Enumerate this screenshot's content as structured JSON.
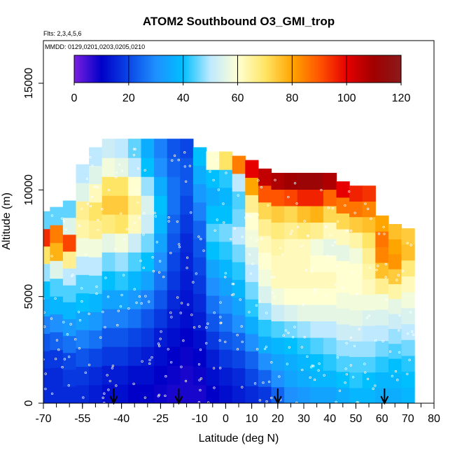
{
  "chart_data": {
    "type": "heatmap",
    "title": "ATOM2 Southbound O3_GMI_trop",
    "flights_label": "Flts: 2,3,4,5,6",
    "dates_label": "MMDD: 0129,0201,0203,0205,0210",
    "xlabel": "Latitude (deg N)",
    "ylabel": "Altitude (m)",
    "xlim": [
      -70,
      80
    ],
    "ylim": [
      0,
      17000
    ],
    "x_ticks": [
      -70,
      -55,
      -40,
      -25,
      -10,
      0,
      10,
      20,
      30,
      40,
      50,
      60,
      70,
      80
    ],
    "y_ticks": [
      0,
      5000,
      10000,
      15000
    ],
    "colorbar": {
      "ticks": [
        0,
        20,
        40,
        60,
        80,
        100,
        120
      ],
      "range": [
        0,
        120
      ],
      "colors": [
        "#7B1FE0",
        "#0000C8",
        "#0A46E6",
        "#1E90FF",
        "#00BFFF",
        "#BFE9FF",
        "#FFFFD2",
        "#FFE566",
        "#FFA500",
        "#FF5500",
        "#E60000",
        "#A00000",
        "#8B1A1A"
      ]
    },
    "flight_arrows_lat": [
      -43,
      -18,
      20,
      61
    ],
    "columns": [
      {
        "lat": -70,
        "top": 9000,
        "values": [
          16,
          16,
          18,
          22,
          28,
          36,
          40,
          48,
          70,
          95,
          45
        ]
      },
      {
        "lat": -65,
        "top": 9200,
        "values": [
          16,
          16,
          18,
          24,
          30,
          38,
          44,
          55,
          78,
          85,
          45
        ]
      },
      {
        "lat": -60,
        "top": 9500,
        "values": [
          16,
          18,
          20,
          26,
          32,
          38,
          44,
          50,
          66,
          92,
          55,
          45
        ]
      },
      {
        "lat": -55,
        "top": 11200,
        "values": [
          16,
          18,
          22,
          28,
          34,
          40,
          44,
          50,
          58,
          64,
          66,
          55,
          50
        ]
      },
      {
        "lat": -50,
        "top": 12000,
        "values": [
          14,
          16,
          20,
          26,
          32,
          38,
          44,
          50,
          58,
          66,
          70,
          62,
          55,
          50
        ]
      },
      {
        "lat": -45,
        "top": 12400,
        "values": [
          12,
          14,
          18,
          22,
          28,
          34,
          40,
          46,
          56,
          68,
          74,
          70,
          58,
          52
        ]
      },
      {
        "lat": -40,
        "top": 12400,
        "values": [
          12,
          14,
          18,
          22,
          28,
          34,
          42,
          48,
          58,
          70,
          74,
          70,
          56,
          50
        ]
      },
      {
        "lat": -35,
        "top": 12400,
        "values": [
          10,
          12,
          16,
          20,
          26,
          32,
          38,
          44,
          52,
          62,
          66,
          60,
          50,
          45
        ]
      },
      {
        "lat": -30,
        "top": 12400,
        "values": [
          10,
          12,
          14,
          18,
          22,
          28,
          34,
          40,
          46,
          52,
          54,
          48,
          40,
          36
        ]
      },
      {
        "lat": -25,
        "top": 12400,
        "values": [
          9,
          10,
          12,
          14,
          18,
          22,
          26,
          30,
          34,
          38,
          40,
          36,
          30,
          28
        ]
      },
      {
        "lat": -20,
        "top": 12400,
        "values": [
          8,
          9,
          10,
          12,
          14,
          16,
          18,
          20,
          22,
          24,
          26,
          26,
          24,
          22
        ]
      },
      {
        "lat": -15,
        "top": 12400,
        "values": [
          8,
          8,
          9,
          10,
          12,
          13,
          14,
          15,
          16,
          18,
          20,
          22,
          22,
          20
        ]
      },
      {
        "lat": -10,
        "top": 12000,
        "values": [
          8,
          9,
          10,
          12,
          14,
          16,
          18,
          20,
          22,
          24,
          28,
          32,
          36,
          40
        ]
      },
      {
        "lat": -5,
        "top": 11800,
        "values": [
          10,
          12,
          14,
          18,
          22,
          26,
          30,
          34,
          40,
          44,
          40,
          36,
          40,
          60
        ]
      },
      {
        "lat": 0,
        "top": 11800,
        "values": [
          12,
          14,
          18,
          22,
          26,
          30,
          34,
          38,
          42,
          46,
          40,
          38,
          42,
          70
        ]
      },
      {
        "lat": 5,
        "top": 11600,
        "values": [
          14,
          16,
          20,
          24,
          30,
          34,
          38,
          42,
          46,
          50,
          46,
          44,
          50,
          85
        ]
      },
      {
        "lat": 10,
        "top": 11400,
        "values": [
          16,
          20,
          24,
          30,
          36,
          42,
          46,
          50,
          54,
          58,
          60,
          66,
          80,
          100
        ]
      },
      {
        "lat": 15,
        "top": 11000,
        "values": [
          18,
          24,
          30,
          36,
          42,
          48,
          54,
          58,
          60,
          62,
          66,
          72,
          90,
          105
        ]
      },
      {
        "lat": 20,
        "top": 10800,
        "values": [
          24,
          30,
          34,
          38,
          44,
          52,
          58,
          62,
          62,
          64,
          68,
          74,
          90,
          108
        ]
      },
      {
        "lat": 25,
        "top": 10800,
        "values": [
          30,
          34,
          36,
          40,
          46,
          54,
          60,
          62,
          62,
          62,
          66,
          72,
          92,
          110
        ]
      },
      {
        "lat": 30,
        "top": 10800,
        "values": [
          32,
          36,
          38,
          42,
          48,
          56,
          60,
          62,
          62,
          62,
          68,
          76,
          96,
          112
        ]
      },
      {
        "lat": 35,
        "top": 10800,
        "values": [
          34,
          38,
          40,
          44,
          50,
          56,
          60,
          62,
          60,
          58,
          66,
          78,
          96,
          112
        ]
      },
      {
        "lat": 40,
        "top": 10800,
        "values": [
          34,
          38,
          42,
          46,
          50,
          56,
          60,
          62,
          60,
          56,
          62,
          72,
          88,
          108
        ]
      },
      {
        "lat": 45,
        "top": 10400,
        "values": [
          36,
          40,
          44,
          48,
          52,
          56,
          58,
          60,
          60,
          56,
          62,
          72,
          86,
          100
        ]
      },
      {
        "lat": 50,
        "top": 10200,
        "values": [
          38,
          42,
          44,
          48,
          52,
          56,
          58,
          60,
          60,
          58,
          64,
          74,
          86,
          96
        ]
      },
      {
        "lat": 55,
        "top": 10200,
        "values": [
          38,
          40,
          44,
          48,
          50,
          54,
          58,
          62,
          64,
          66,
          70,
          76,
          84,
          94
        ]
      },
      {
        "lat": 60,
        "top": 8800,
        "values": [
          36,
          38,
          42,
          46,
          50,
          54,
          58,
          66,
          76,
          84,
          86,
          80
        ]
      },
      {
        "lat": 65,
        "top": 8400,
        "values": [
          36,
          38,
          40,
          44,
          48,
          52,
          56,
          64,
          74,
          82,
          80,
          76
        ]
      },
      {
        "lat": 70,
        "top": 8200,
        "values": [
          38,
          40,
          42,
          46,
          50,
          54,
          58,
          62,
          68,
          76,
          74
        ]
      }
    ]
  }
}
